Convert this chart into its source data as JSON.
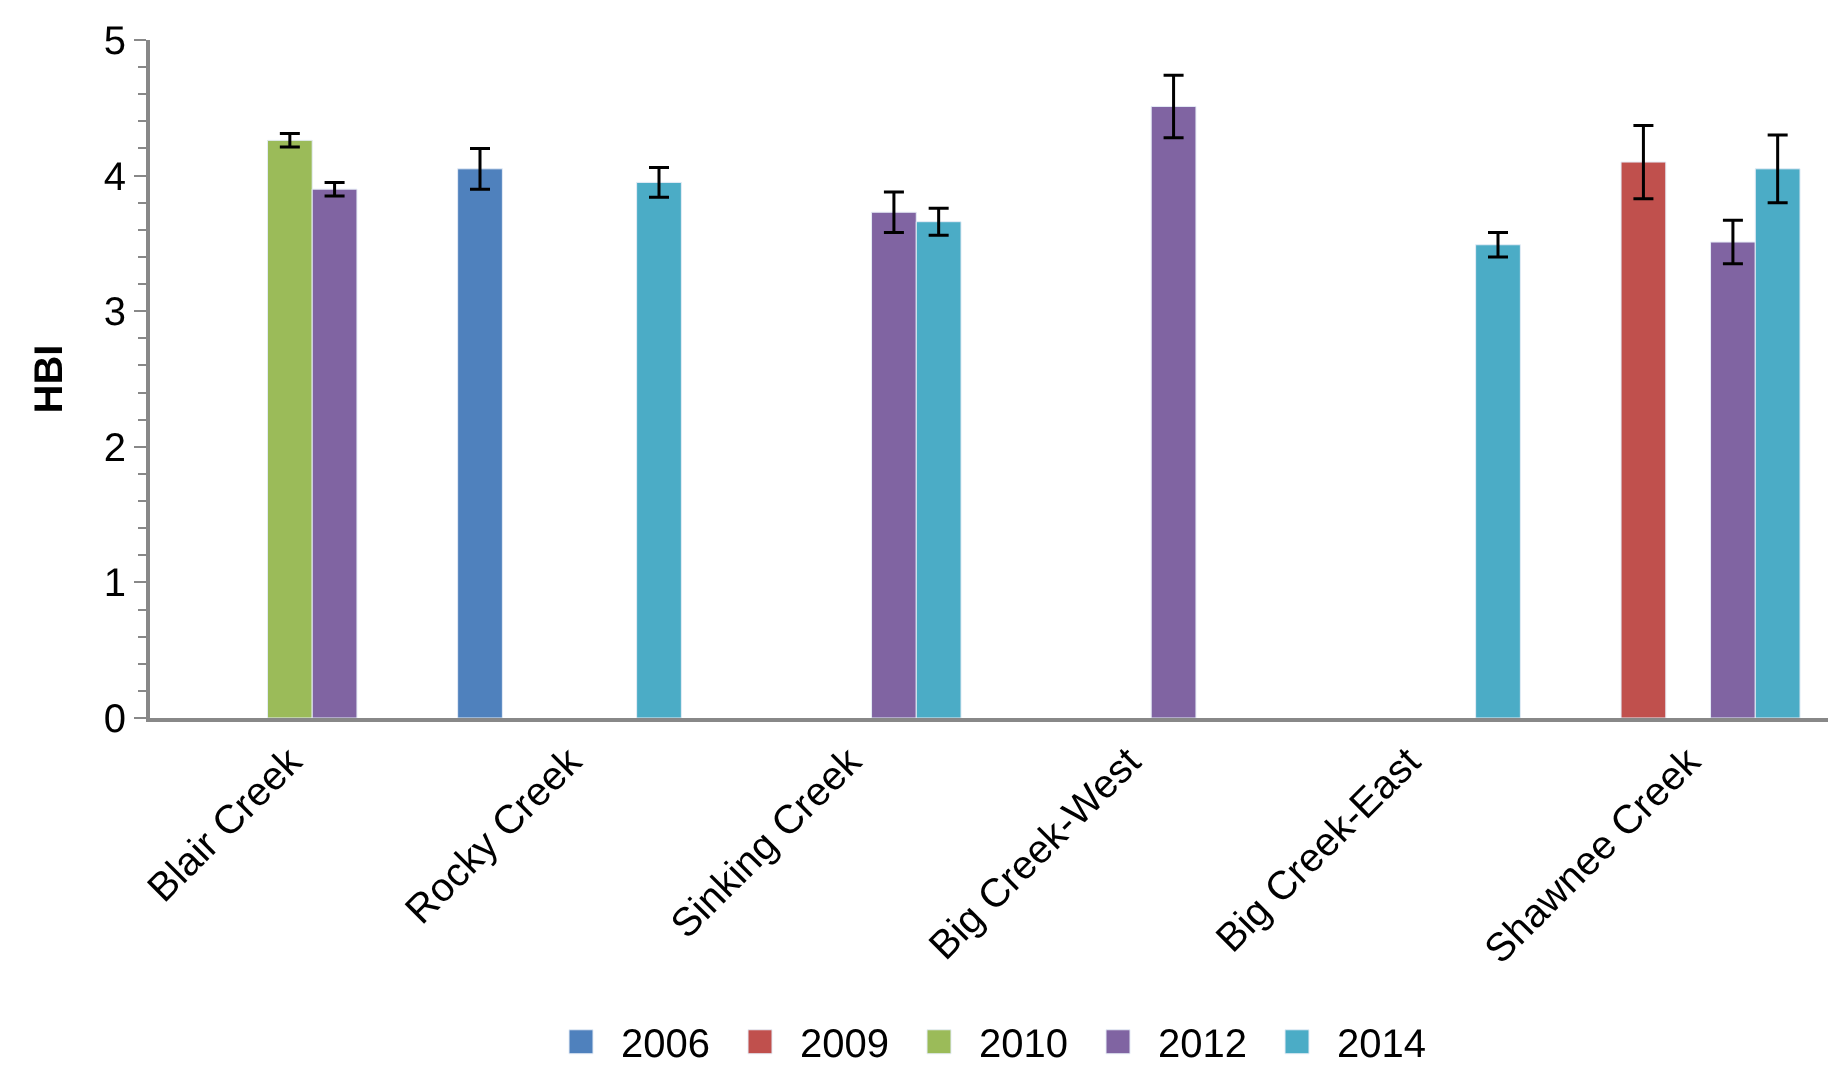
{
  "chart_data": {
    "type": "bar",
    "ylabel": "HBI",
    "categories": [
      "Blair Creek",
      "Rocky Creek",
      "Sinking Creek",
      "Big Creek-West",
      "Big Creek-East",
      "Shawnee Creek"
    ],
    "series": [
      {
        "name": "2006",
        "color": "#4f81bd",
        "values": [
          null,
          4.05,
          null,
          null,
          null,
          null
        ],
        "errors": [
          null,
          0.15,
          null,
          null,
          null,
          null
        ]
      },
      {
        "name": "2009",
        "color": "#c0504d",
        "values": [
          null,
          null,
          null,
          null,
          null,
          4.1
        ],
        "errors": [
          null,
          null,
          null,
          null,
          null,
          0.27
        ]
      },
      {
        "name": "2010",
        "color": "#9bbb59",
        "values": [
          4.26,
          null,
          null,
          null,
          null,
          null
        ],
        "errors": [
          0.05,
          null,
          null,
          null,
          null,
          null
        ]
      },
      {
        "name": "2012",
        "color": "#8064a2",
        "values": [
          3.9,
          null,
          3.73,
          4.51,
          null,
          3.51
        ],
        "errors": [
          0.05,
          null,
          0.15,
          0.23,
          null,
          0.16
        ]
      },
      {
        "name": "2014",
        "color": "#4bacc6",
        "values": [
          null,
          3.95,
          3.66,
          null,
          3.49,
          4.05
        ],
        "errors": [
          null,
          0.11,
          0.1,
          null,
          0.09,
          0.25
        ]
      }
    ],
    "ylim": [
      0,
      5
    ],
    "yticks": [
      0,
      1,
      2,
      3,
      4,
      5
    ],
    "legend": "bottom"
  }
}
